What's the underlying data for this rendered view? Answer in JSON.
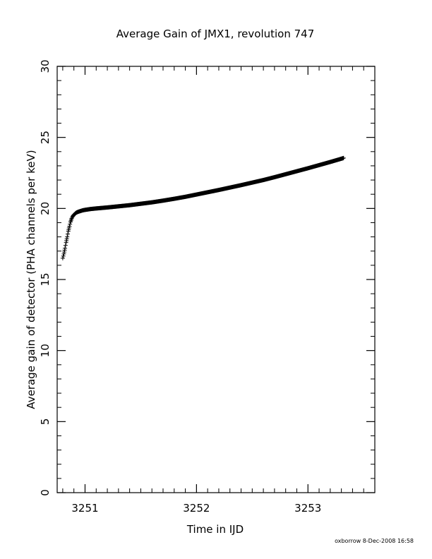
{
  "chart_data": {
    "type": "scatter",
    "title": "Average Gain of JMX1, revolution 747",
    "xlabel": "Time in IJD",
    "ylabel": "Average gain of detector (PHA channels per keV)",
    "xlim": [
      3250.75,
      3253.6
    ],
    "ylim": [
      0,
      30
    ],
    "x_ticks": [
      3251,
      3252,
      3253
    ],
    "y_ticks": [
      0,
      5,
      10,
      15,
      20,
      25,
      30
    ],
    "x_minor_step": 0.1,
    "y_minor_step": 1,
    "grid": false,
    "marker": "plus",
    "color": "#000000",
    "series": [
      {
        "points": [
          [
            3250.8,
            16.5
          ],
          [
            3250.81,
            16.8
          ],
          [
            3250.82,
            17.2
          ],
          [
            3250.83,
            17.6
          ],
          [
            3250.84,
            18.0
          ],
          [
            3250.85,
            18.4
          ],
          [
            3250.86,
            18.75
          ],
          [
            3250.87,
            19.05
          ],
          [
            3250.88,
            19.3
          ],
          [
            3250.89,
            19.45
          ],
          [
            3250.9,
            19.55
          ],
          [
            3250.92,
            19.7
          ],
          [
            3250.94,
            19.77
          ],
          [
            3250.96,
            19.82
          ],
          [
            3250.98,
            19.87
          ],
          [
            3251.0,
            19.9
          ],
          [
            3251.05,
            19.96
          ],
          [
            3251.1,
            20.0
          ],
          [
            3251.2,
            20.07
          ],
          [
            3251.3,
            20.15
          ],
          [
            3251.4,
            20.23
          ],
          [
            3251.5,
            20.33
          ],
          [
            3251.6,
            20.43
          ],
          [
            3251.7,
            20.55
          ],
          [
            3251.8,
            20.68
          ],
          [
            3251.9,
            20.82
          ],
          [
            3252.0,
            20.98
          ],
          [
            3252.1,
            21.14
          ],
          [
            3252.2,
            21.3
          ],
          [
            3252.3,
            21.47
          ],
          [
            3252.4,
            21.64
          ],
          [
            3252.5,
            21.82
          ],
          [
            3252.6,
            22.0
          ],
          [
            3252.7,
            22.2
          ],
          [
            3252.8,
            22.41
          ],
          [
            3252.9,
            22.62
          ],
          [
            3253.0,
            22.83
          ],
          [
            3253.1,
            23.05
          ],
          [
            3253.2,
            23.27
          ],
          [
            3253.3,
            23.5
          ],
          [
            3253.32,
            23.55
          ]
        ]
      }
    ]
  },
  "footer": {
    "stamp": "oxborrow  8-Dec-2008 16:58"
  }
}
